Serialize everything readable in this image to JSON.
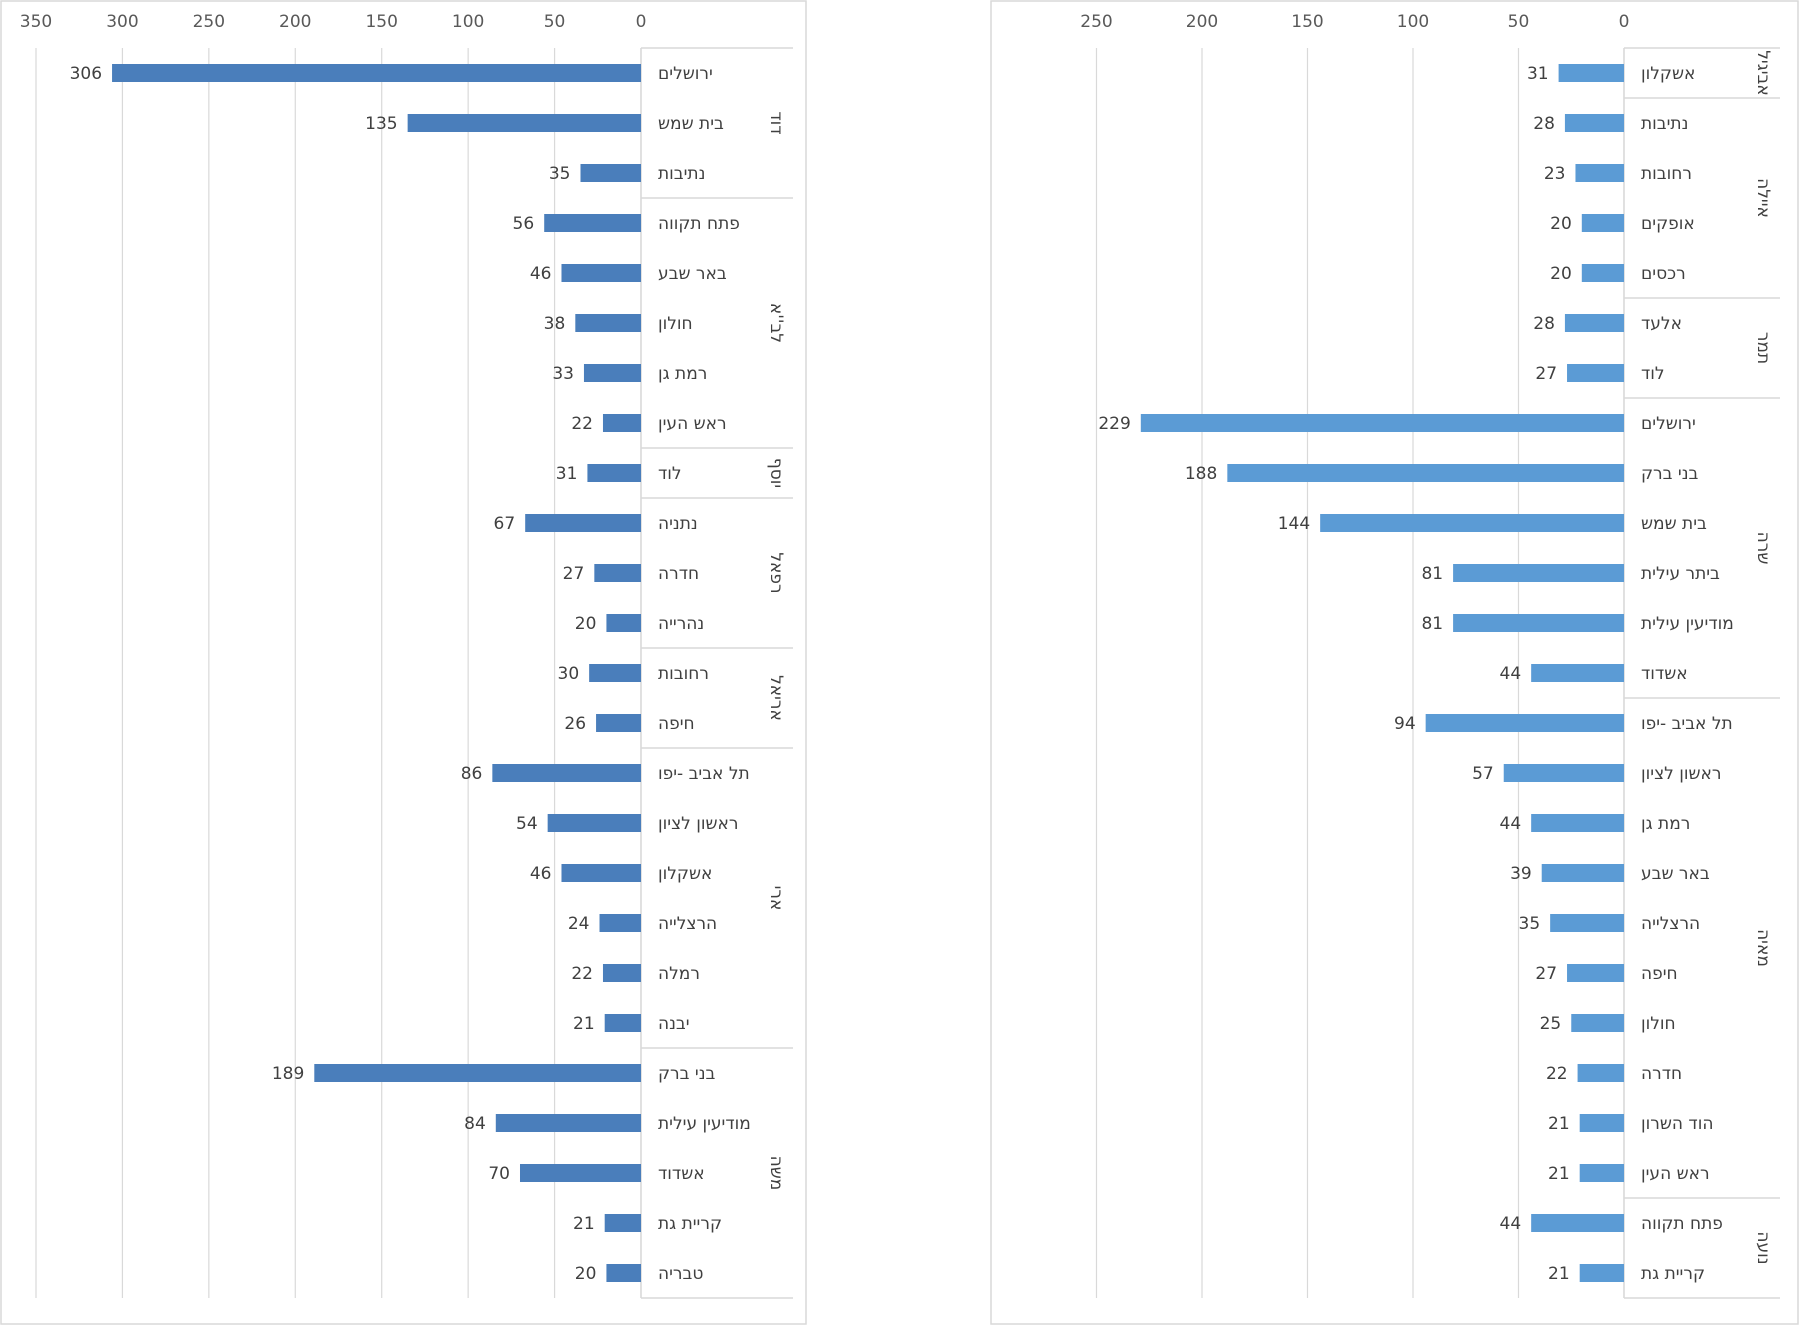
{
  "chart_data": [
    {
      "type": "bar",
      "orientation": "horizontal",
      "xlim": [
        0,
        350
      ],
      "xticks": [
        350,
        300,
        250,
        200,
        150,
        100,
        50,
        0
      ],
      "color": "#4a7ebb",
      "grid": true,
      "groups": [
        {
          "name": "דוד",
          "items": [
            {
              "category": "ירושלים",
              "value": 306
            },
            {
              "category": "בית שמש",
              "value": 135
            },
            {
              "category": "נתיבות",
              "value": 35
            }
          ]
        },
        {
          "name": "לב''א",
          "items": [
            {
              "category": "פתח תקווה",
              "value": 56
            },
            {
              "category": "באר שבע",
              "value": 46
            },
            {
              "category": "חולון",
              "value": 38
            },
            {
              "category": "רמת גן",
              "value": 33
            },
            {
              "category": "ראש העין",
              "value": 22
            }
          ]
        },
        {
          "name": "יוסף",
          "items": [
            {
              "category": "לוד",
              "value": 31
            }
          ]
        },
        {
          "name": "רפאל",
          "items": [
            {
              "category": "נתניה",
              "value": 67
            },
            {
              "category": "חדרה",
              "value": 27
            },
            {
              "category": "נהרייה",
              "value": 20
            }
          ]
        },
        {
          "name": "אריאל",
          "items": [
            {
              "category": "רחובות",
              "value": 30
            },
            {
              "category": "חיפה",
              "value": 26
            }
          ]
        },
        {
          "name": "ארי",
          "items": [
            {
              "category": "תל אביב -יפו",
              "value": 86
            },
            {
              "category": "ראשון לציון",
              "value": 54
            },
            {
              "category": "אשקלון",
              "value": 46
            },
            {
              "category": "הרצלייה",
              "value": 24
            },
            {
              "category": "רמלה",
              "value": 22
            },
            {
              "category": "יבנה",
              "value": 21
            }
          ]
        },
        {
          "name": "משה",
          "items": [
            {
              "category": "בני ברק",
              "value": 189
            },
            {
              "category": "מודיעין עילית",
              "value": 84
            },
            {
              "category": "אשדוד",
              "value": 70
            },
            {
              "category": "קריית גת",
              "value": 21
            },
            {
              "category": "טבריה",
              "value": 20
            }
          ]
        }
      ]
    },
    {
      "type": "bar",
      "orientation": "horizontal",
      "xlim": [
        0,
        250
      ],
      "xticks": [
        250,
        200,
        150,
        100,
        50,
        0
      ],
      "color": "#5b9bd5",
      "grid": true,
      "groups": [
        {
          "name": "אביגיל",
          "items": [
            {
              "category": "אשקלון",
              "value": 31
            }
          ]
        },
        {
          "name": "איילה",
          "items": [
            {
              "category": "נתיבות",
              "value": 28
            },
            {
              "category": "רחובות",
              "value": 23
            },
            {
              "category": "אופקים",
              "value": 20
            },
            {
              "category": "רכסים",
              "value": 20
            }
          ]
        },
        {
          "name": "תמר",
          "items": [
            {
              "category": "אלעד",
              "value": 28
            },
            {
              "category": "לוד",
              "value": 27
            }
          ]
        },
        {
          "name": "שרה",
          "items": [
            {
              "category": "ירושלים",
              "value": 229
            },
            {
              "category": "בני ברק",
              "value": 188
            },
            {
              "category": "בית שמש",
              "value": 144
            },
            {
              "category": "ביתר עילית",
              "value": 81
            },
            {
              "category": "מודיעין עילית",
              "value": 81
            },
            {
              "category": "אשדוד",
              "value": 44
            }
          ]
        },
        {
          "name": "מאיה",
          "items": [
            {
              "category": "תל אביב -יפו",
              "value": 94
            },
            {
              "category": "ראשון לציון",
              "value": 57
            },
            {
              "category": "רמת גן",
              "value": 44
            },
            {
              "category": "באר שבע",
              "value": 39
            },
            {
              "category": "הרצלייה",
              "value": 35
            },
            {
              "category": "חיפה",
              "value": 27
            },
            {
              "category": "חולון",
              "value": 25
            },
            {
              "category": "חדרה",
              "value": 22
            },
            {
              "category": "הוד השרון",
              "value": 21
            },
            {
              "category": "ראש העין",
              "value": 21
            }
          ]
        },
        {
          "name": "נועה",
          "items": [
            {
              "category": "פתח תקווה",
              "value": 44
            },
            {
              "category": "קריית גת",
              "value": 21
            }
          ]
        }
      ]
    }
  ]
}
